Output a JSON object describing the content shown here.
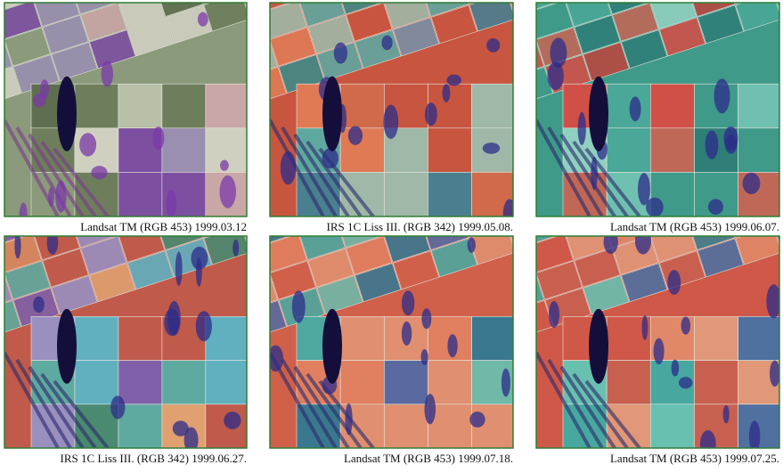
{
  "panels": [
    {
      "caption": "Landsat TM  (RGB 453) 1999.03.12"
    },
    {
      "caption": "IRS 1C Liss III.  (RGB 342) 1999.05.08."
    },
    {
      "caption": "Landsat TM  (RGB 453) 1999.06.07."
    },
    {
      "caption": "IRS 1C Liss III.  (RGB 342) 1999.06.27."
    },
    {
      "caption": "Landsat TM  (RGB 453) 1999.07.18."
    },
    {
      "caption": "Landsat TM  (RGB 453) 1999.07.25."
    }
  ]
}
